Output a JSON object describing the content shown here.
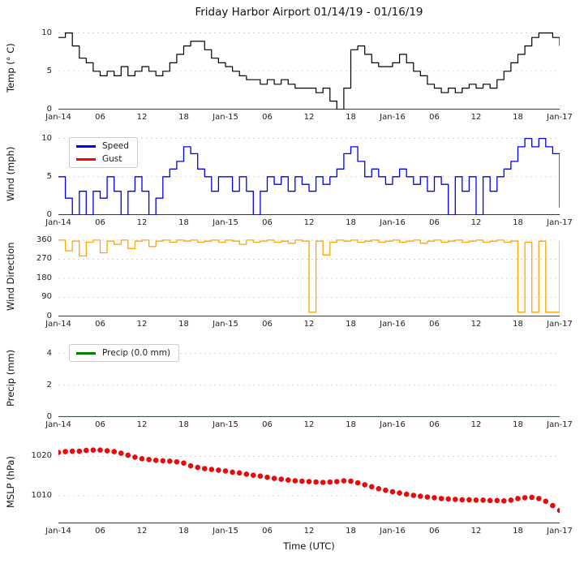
{
  "title": "Friday Harbor Airport 01/14/19 - 01/16/19",
  "xlabel": "Time (UTC)",
  "x_axis": {
    "max": 72,
    "ticks": [
      {
        "pos": 0,
        "label": "Jan-14"
      },
      {
        "pos": 6,
        "label": "06"
      },
      {
        "pos": 12,
        "label": "12"
      },
      {
        "pos": 18,
        "label": "18"
      },
      {
        "pos": 24,
        "label": "Jan-15"
      },
      {
        "pos": 30,
        "label": "06"
      },
      {
        "pos": 36,
        "label": "12"
      },
      {
        "pos": 42,
        "label": "18"
      },
      {
        "pos": 48,
        "label": "Jan-16"
      },
      {
        "pos": 54,
        "label": "06"
      },
      {
        "pos": 60,
        "label": "12"
      },
      {
        "pos": 66,
        "label": "18"
      },
      {
        "pos": 72,
        "label": "Jan-17"
      }
    ]
  },
  "colors": {
    "temp": "#000000",
    "wind_speed": "#0000ee",
    "wind_gust": "#ff0000",
    "wind_direction": "#ffa500",
    "precip": "#008000",
    "mslp": "#e80b0b",
    "grid": "#cfcfcf",
    "axis": "#3a3a3a"
  },
  "chart_data": [
    {
      "type": "line",
      "ylabel": "Temp (° C)",
      "ylim": [
        0,
        10.8
      ],
      "yticks": [
        0,
        5,
        10
      ],
      "series": [
        {
          "name": "Temperature",
          "color": "#000000",
          "style": "step",
          "width": 1.2,
          "x_start": 0,
          "x_step": 1,
          "values": [
            9.4,
            10,
            8.3,
            6.7,
            6.1,
            5,
            4.4,
            5,
            4.4,
            5.6,
            4.4,
            5,
            5.6,
            5,
            4.4,
            5,
            6.1,
            7.2,
            8.3,
            8.9,
            8.9,
            7.8,
            6.7,
            6.1,
            5.6,
            5,
            4.4,
            3.9,
            3.9,
            3.3,
            3.9,
            3.3,
            3.9,
            3.3,
            2.8,
            2.8,
            2.8,
            2.2,
            2.8,
            1.1,
            0,
            2.8,
            7.8,
            8.3,
            7.2,
            6.1,
            5.6,
            5.6,
            6.1,
            7.2,
            6.1,
            5,
            4.4,
            3.3,
            2.8,
            2.2,
            2.8,
            2.2,
            2.8,
            3.3,
            2.8,
            3.3,
            2.8,
            3.9,
            5,
            6.1,
            7.2,
            8.3,
            9.4,
            10,
            10,
            9.4,
            8.3
          ]
        }
      ]
    },
    {
      "type": "line",
      "ylabel": "Wind (mph)",
      "ylim": [
        0,
        10.8
      ],
      "yticks": [
        0,
        5,
        10
      ],
      "legend": [
        {
          "label": "Speed",
          "color": "#0000ee"
        },
        {
          "label": "Gust",
          "color": "#ff0000"
        }
      ],
      "series": [
        {
          "name": "Speed",
          "color": "#0000ee",
          "style": "step",
          "width": 1.3,
          "x_start": 0,
          "x_step": 1,
          "values": [
            5,
            2.2,
            0,
            3.1,
            0,
            3.1,
            2.2,
            5,
            3.1,
            0,
            3.1,
            5,
            3.1,
            0,
            2.2,
            5,
            6,
            7,
            8.9,
            8,
            6,
            5,
            3.1,
            5,
            5,
            3.1,
            5,
            3.1,
            0,
            3.1,
            5,
            4,
            5,
            3.1,
            5,
            4,
            3.1,
            5,
            4,
            5,
            6,
            8,
            8.9,
            7,
            5,
            6,
            5,
            4,
            5,
            6,
            5,
            4,
            5,
            3.1,
            5,
            4,
            0,
            5,
            3.1,
            5,
            0,
            5,
            3.1,
            5,
            6,
            7,
            8.9,
            10,
            8.9,
            10,
            8.9,
            8,
            1
          ]
        },
        {
          "name": "Gust",
          "color": "#ff0000",
          "style": "step",
          "width": 1.3,
          "x_start": 0,
          "x_step": 1,
          "values": []
        }
      ]
    },
    {
      "type": "line",
      "ylabel": "Wind Direction",
      "ylim": [
        0,
        375
      ],
      "yticks": [
        0,
        90,
        180,
        270,
        360
      ],
      "series": [
        {
          "name": "Direction",
          "color": "#ffa500",
          "style": "step",
          "width": 1.3,
          "x_start": 0,
          "x_step": 1,
          "values": [
            360,
            310,
            355,
            285,
            350,
            360,
            300,
            355,
            340,
            360,
            320,
            355,
            360,
            330,
            355,
            360,
            350,
            360,
            355,
            360,
            350,
            355,
            360,
            350,
            360,
            355,
            340,
            360,
            350,
            355,
            360,
            350,
            355,
            345,
            360,
            355,
            20,
            355,
            290,
            350,
            360,
            355,
            360,
            350,
            355,
            360,
            350,
            355,
            360,
            350,
            355,
            360,
            345,
            355,
            360,
            350,
            355,
            360,
            350,
            355,
            360,
            350,
            355,
            360,
            350,
            355,
            20,
            350,
            20,
            355,
            20,
            20,
            355
          ]
        }
      ]
    },
    {
      "type": "line",
      "ylabel": "Precip (mm)",
      "ylim": [
        0,
        4.9
      ],
      "yticks": [
        0,
        2,
        4
      ],
      "legend": [
        {
          "label": "Precip (0.0 mm)",
          "color": "#008000"
        }
      ],
      "series": [
        {
          "name": "Precip",
          "color": "#008000",
          "style": "line",
          "width": 2.2,
          "x": [
            0,
            72
          ],
          "values": [
            0,
            0
          ]
        }
      ]
    },
    {
      "type": "scatter",
      "ylabel": "MSLP (hPa)",
      "ylim": [
        1003,
        1024
      ],
      "yticks": [
        1010,
        1020
      ],
      "series": [
        {
          "name": "MSLP",
          "color": "#e80b0b",
          "style": "scatter",
          "x_start": 0,
          "x_step": 1,
          "values": [
            1021.0,
            1021.2,
            1021.3,
            1021.3,
            1021.5,
            1021.6,
            1021.6,
            1021.4,
            1021.2,
            1020.8,
            1020.3,
            1019.8,
            1019.4,
            1019.2,
            1019.0,
            1018.9,
            1018.8,
            1018.6,
            1018.3,
            1017.6,
            1017.2,
            1016.9,
            1016.7,
            1016.5,
            1016.3,
            1016.0,
            1015.8,
            1015.5,
            1015.2,
            1015.0,
            1014.7,
            1014.4,
            1014.2,
            1014.0,
            1013.8,
            1013.7,
            1013.6,
            1013.5,
            1013.4,
            1013.5,
            1013.6,
            1013.8,
            1013.7,
            1013.3,
            1012.8,
            1012.3,
            1011.8,
            1011.4,
            1011.0,
            1010.7,
            1010.4,
            1010.1,
            1009.9,
            1009.7,
            1009.5,
            1009.3,
            1009.2,
            1009.1,
            1009.0,
            1009.0,
            1008.9,
            1008.9,
            1008.8,
            1008.8,
            1008.7,
            1008.9,
            1009.3,
            1009.5,
            1009.6,
            1009.3,
            1008.6,
            1007.5,
            1006.3
          ]
        }
      ]
    }
  ]
}
